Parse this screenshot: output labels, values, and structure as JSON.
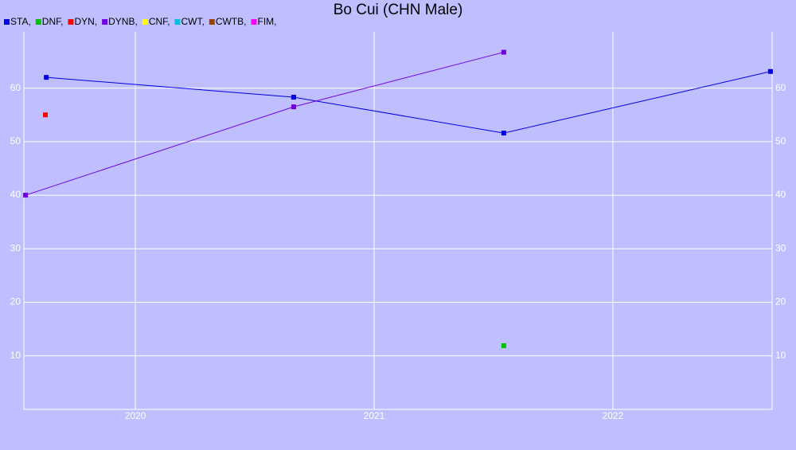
{
  "chart_data": {
    "type": "line",
    "title": "Bo Cui (CHN Male)",
    "xlim": [
      2019.533,
      2022.667
    ],
    "xticks": [
      2020,
      2021,
      2022
    ],
    "ylim": [
      0,
      70.5
    ],
    "yticks": [
      10,
      20,
      30,
      40,
      50,
      60
    ],
    "grid": true,
    "series": [
      {
        "name": "STA,",
        "color": "#0000e0",
        "x": [
          2019.627,
          2020.663,
          2021.543,
          2022.66
        ],
        "values": [
          62,
          58.3,
          51.6,
          63.1
        ]
      },
      {
        "name": "DNF,",
        "color": "#00c000",
        "x": [
          2021.543
        ],
        "values": [
          11.9
        ]
      },
      {
        "name": "DYN,",
        "color": "#ff0000",
        "x": [
          2019.623
        ],
        "values": [
          55
        ]
      },
      {
        "name": "DYNB,",
        "color": "#7000e0",
        "x": [
          2019.54,
          2020.663,
          2021.543
        ],
        "values": [
          40,
          56.5,
          66.7
        ]
      },
      {
        "name": "CNF,",
        "color": "#ffff00",
        "x": [],
        "values": []
      },
      {
        "name": "CWT,",
        "color": "#00c0e0",
        "x": [],
        "values": []
      },
      {
        "name": "CWTB,",
        "color": "#a04000",
        "x": [],
        "values": []
      },
      {
        "name": "FIM,",
        "color": "#ff00ff",
        "x": [],
        "values": []
      }
    ]
  }
}
